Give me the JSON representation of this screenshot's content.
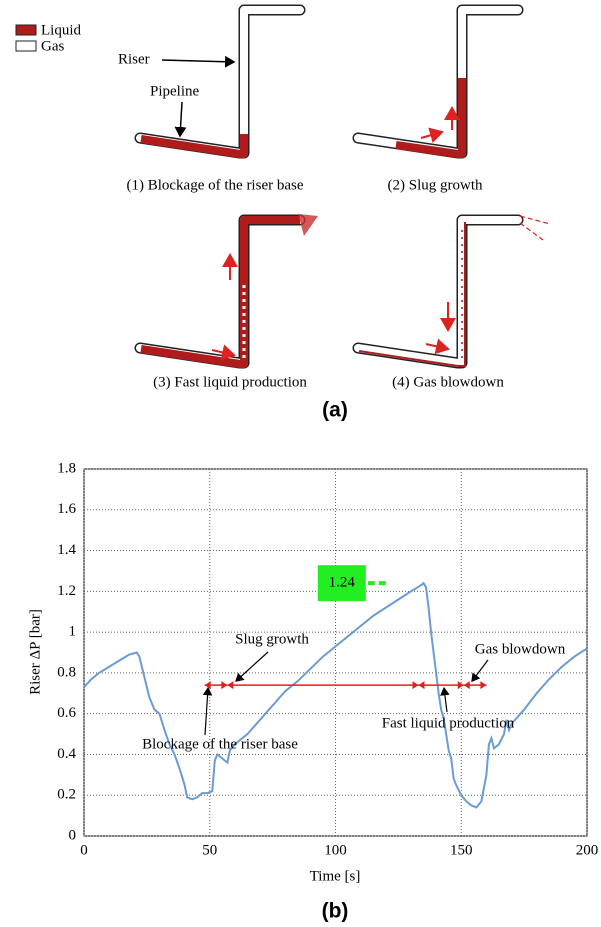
{
  "panel_a": {
    "legend": [
      "Liquid",
      "Gas"
    ],
    "riser_label": "Riser",
    "pipeline_label": "Pipeline",
    "stages": [
      "(1) Blockage of the riser base",
      "(2) Slug growth",
      "(3) Fast liquid production",
      "(4) Gas blowdown"
    ],
    "caption": "(a)"
  },
  "chart_data": {
    "type": "line",
    "xlabel": "Time [s]",
    "ylabel": "Riser ΔP [bar]",
    "x": [
      0,
      3,
      6,
      10,
      14,
      18,
      21,
      22,
      24,
      26,
      28,
      30,
      32,
      34,
      36,
      38,
      40,
      41,
      43,
      45,
      47,
      49,
      51,
      52,
      53,
      55,
      57,
      58,
      60,
      65,
      70,
      75,
      80,
      85,
      90,
      95,
      100,
      105,
      110,
      115,
      120,
      125,
      130,
      134,
      135,
      136,
      137,
      138,
      139,
      140,
      141,
      142,
      143,
      144,
      145,
      146,
      147,
      148,
      150,
      152,
      154,
      156,
      158,
      160,
      161,
      162,
      163,
      165,
      167,
      168,
      169,
      170,
      175,
      180,
      185,
      190,
      195,
      200
    ],
    "series": [
      {
        "color": "#6b9bd2",
        "values": [
          0.73,
          0.77,
          0.8,
          0.83,
          0.86,
          0.89,
          0.9,
          0.88,
          0.78,
          0.68,
          0.62,
          0.6,
          0.52,
          0.45,
          0.4,
          0.33,
          0.25,
          0.19,
          0.18,
          0.19,
          0.21,
          0.21,
          0.22,
          0.37,
          0.4,
          0.38,
          0.36,
          0.42,
          0.45,
          0.5,
          0.57,
          0.64,
          0.71,
          0.76,
          0.82,
          0.88,
          0.93,
          0.98,
          1.03,
          1.08,
          1.12,
          1.16,
          1.2,
          1.23,
          1.24,
          1.22,
          1.12,
          1.0,
          0.9,
          0.8,
          0.7,
          0.62,
          0.58,
          0.5,
          0.42,
          0.38,
          0.28,
          0.25,
          0.2,
          0.17,
          0.15,
          0.14,
          0.17,
          0.3,
          0.45,
          0.48,
          0.43,
          0.45,
          0.5,
          0.57,
          0.52,
          0.55,
          0.62,
          0.7,
          0.77,
          0.83,
          0.88,
          0.92
        ]
      }
    ],
    "xlim": [
      0,
      200
    ],
    "ylim": [
      0,
      1.8
    ],
    "xticks": [
      0,
      50,
      100,
      150,
      200
    ],
    "yticks": [
      0,
      0.2,
      0.4,
      0.6,
      0.8,
      1,
      1.2,
      1.4,
      1.6,
      1.8
    ],
    "grid": true,
    "peak_label": {
      "value": 1.24,
      "x": 120
    },
    "phase_level": 0.74,
    "phase_color": "#e02020",
    "phases": [
      {
        "label": "Blockage of the riser base",
        "start": 48,
        "end": 57
      },
      {
        "label": "Slug growth",
        "start": 57,
        "end": 133
      },
      {
        "label": "Fast liquid production",
        "start": 133,
        "end": 151
      },
      {
        "label": "Gas blowdown",
        "start": 151,
        "end": 160
      }
    ],
    "caption": "(b)"
  }
}
